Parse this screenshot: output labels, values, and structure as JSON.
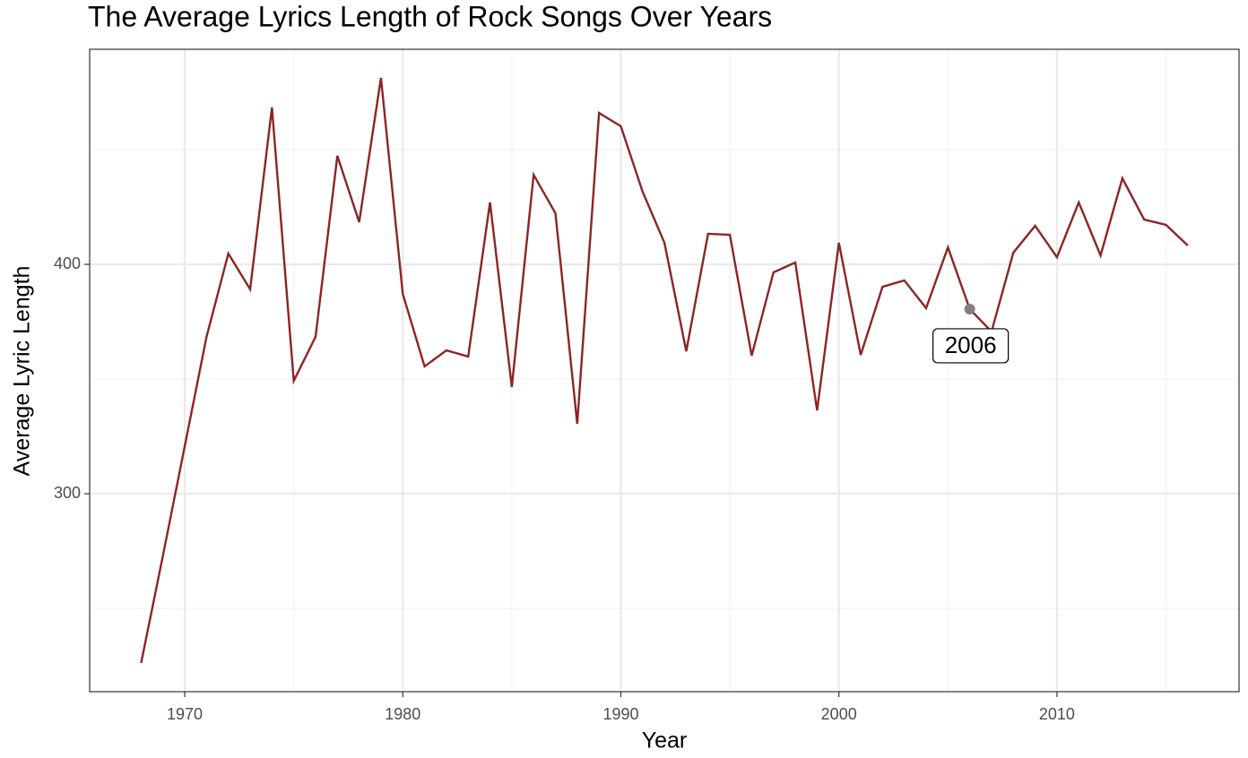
{
  "chart_data": {
    "type": "line",
    "title": "The Average Lyrics Length of Rock Songs Over Years",
    "x_label": "Year",
    "y_label": "Average Lyric Length",
    "x": [
      1968,
      1969,
      1970,
      1971,
      1972,
      1973,
      1974,
      1975,
      1976,
      1977,
      1978,
      1979,
      1980,
      1981,
      1982,
      1983,
      1984,
      1985,
      1986,
      1987,
      1988,
      1989,
      1990,
      1991,
      1992,
      1993,
      1994,
      1995,
      1996,
      1997,
      1998,
      1999,
      2000,
      2001,
      2002,
      2003,
      2004,
      2005,
      2006,
      2007,
      2008,
      2009,
      2010,
      2011,
      2012,
      2013,
      2014,
      2015,
      2016
    ],
    "series": [
      {
        "name": "Average Lyric Length",
        "color": "#8b2525",
        "values": [
          226.2,
          273,
          320.7,
          368.4,
          404.7,
          389.1,
          468.4,
          349.2,
          368.4,
          447.3,
          418.4,
          481.3,
          387.1,
          355.5,
          362.5,
          359.8,
          427,
          346.5,
          439,
          422.3,
          330.5,
          466,
          460.2,
          431.6,
          409.4,
          362.1,
          413.3,
          412.9,
          360.2,
          396.5,
          400.8,
          336.3,
          409.4,
          360.5,
          390.2,
          393,
          380.9,
          407.4,
          380.5,
          370.7,
          405.1,
          416.8,
          403.1,
          427,
          403.9,
          437.5,
          419.5,
          417.2,
          408.2
        ]
      }
    ],
    "highlight": {
      "x": 2006,
      "label": "2006",
      "color": "#808080"
    },
    "xlim": [
      1965.64,
      2018.35
    ],
    "xticks": [
      1970,
      1980,
      1990,
      2000,
      2010
    ],
    "xminor": [
      1975,
      1985,
      1995,
      2005,
      2015
    ],
    "ylim": [
      213.7,
      493.75
    ],
    "yticks": [
      300,
      400
    ],
    "yminor": [
      250,
      350,
      450
    ],
    "grid": true
  }
}
